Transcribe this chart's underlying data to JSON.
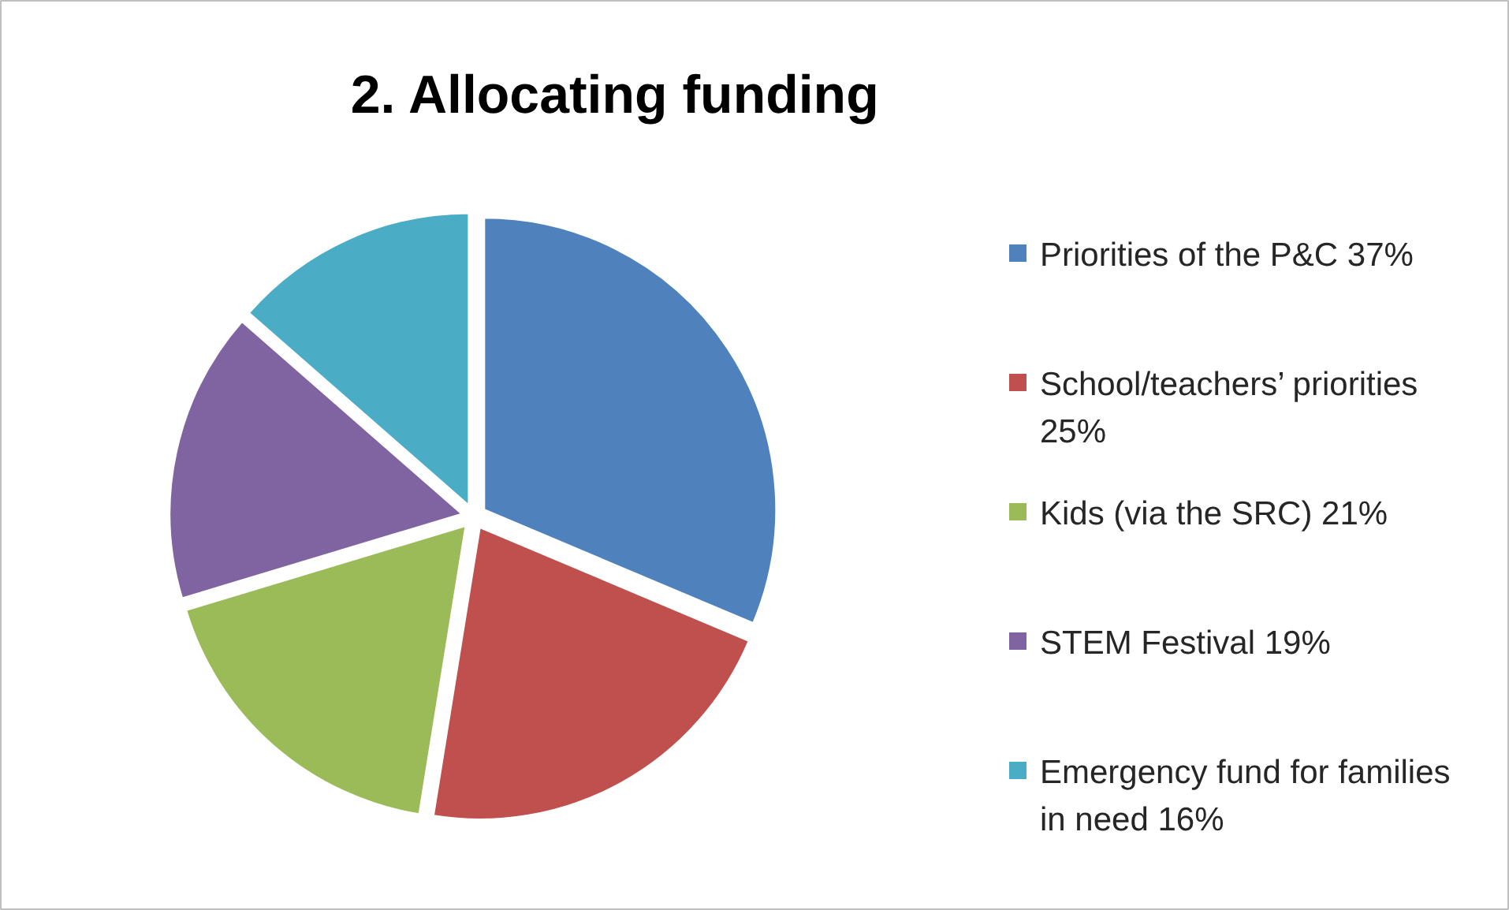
{
  "chart_data": {
    "type": "pie",
    "title": "2. Allocating funding",
    "categories": [
      "Priorities of the P&C",
      "School/teachers’ priorities",
      "Kids (via the SRC)",
      "STEM Festival",
      "Emergency fund for families in need"
    ],
    "values": [
      37,
      25,
      21,
      19,
      16
    ],
    "value_labels": [
      "37%",
      "25%",
      "21%",
      "19%",
      "16%"
    ],
    "colors": [
      "#4f81bd",
      "#c0504d",
      "#9bbb59",
      "#8064a2",
      "#4bacc6"
    ],
    "legend": "right"
  }
}
